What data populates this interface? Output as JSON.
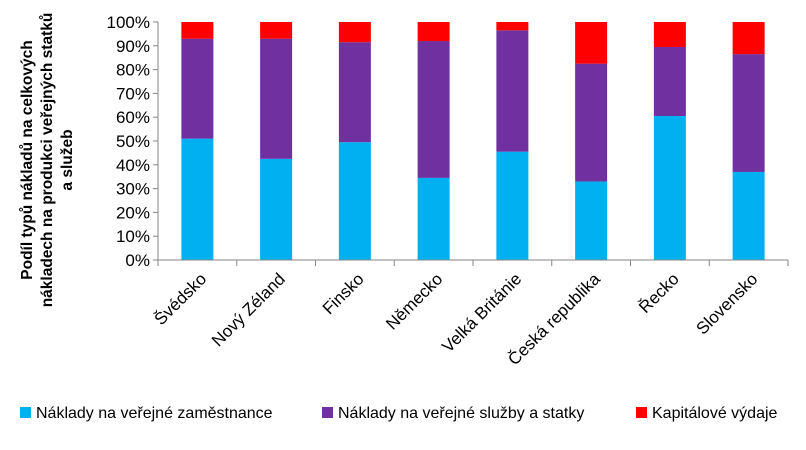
{
  "chart_data": {
    "type": "bar",
    "stacked": "percent",
    "categories": [
      "Švédsko",
      "Nový Zéland",
      "Finsko",
      "Německo",
      "Velká Británie",
      "Česká republika",
      "Řecko",
      "Slovensko"
    ],
    "series": [
      {
        "name": "Náklady na veřejné zaměstnance",
        "color": "#00b0f0",
        "values": [
          51,
          42.5,
          49.5,
          34.5,
          45.5,
          33,
          60.5,
          37
        ]
      },
      {
        "name": "Náklady na veřejné služby a statky",
        "color": "#7030a0",
        "values": [
          42,
          50.5,
          42,
          57.5,
          51,
          49.5,
          29,
          49.5
        ]
      },
      {
        "name": "Kapitálové výdaje",
        "color": "#ff0000",
        "values": [
          7,
          7,
          8.5,
          8,
          3.5,
          17.5,
          10.5,
          13.5
        ]
      }
    ],
    "ylabel_lines": [
      "Podíl typů nákladů na celkových",
      "nákladech na produkci veřejných statků",
      "a služeb"
    ],
    "yticks": [
      "0%",
      "10%",
      "20%",
      "30%",
      "40%",
      "50%",
      "60%",
      "70%",
      "80%",
      "90%",
      "100%"
    ],
    "ylim": [
      0,
      100
    ],
    "grid": false,
    "legend_position": "bottom"
  }
}
